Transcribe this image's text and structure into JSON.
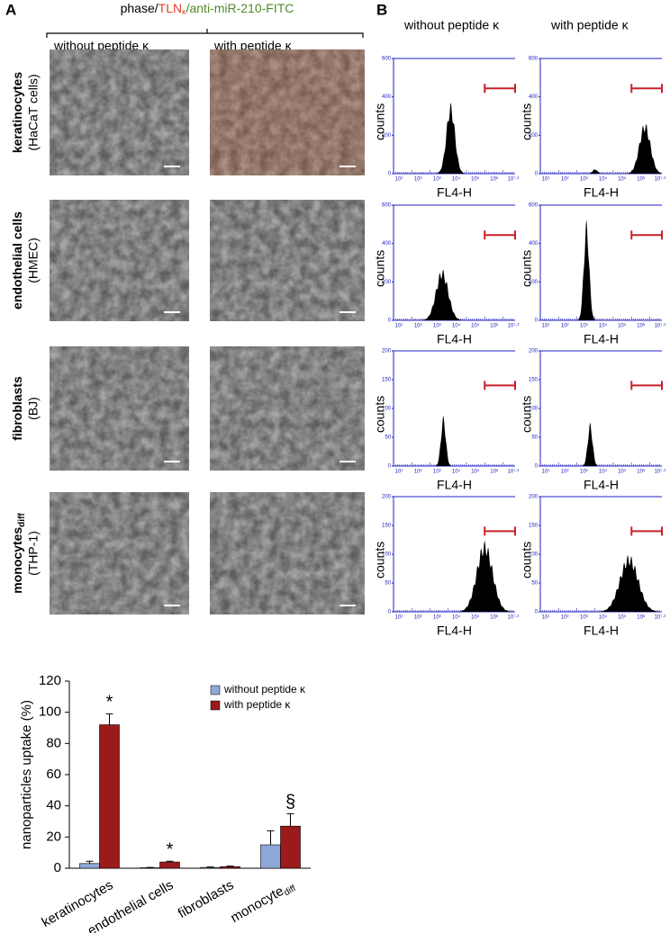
{
  "panel_a": {
    "label": "A",
    "header": [
      "phase/",
      "TLN",
      "κ",
      "/anti-miR-210-FITC"
    ],
    "columns": [
      "without peptide κ",
      "with peptide κ"
    ],
    "rows": [
      {
        "name": "keratinocytes",
        "sub": "(HaCaT cells)"
      },
      {
        "name": "endothelial cells",
        "sub": "(HMEC)"
      },
      {
        "name": "fibroblasts",
        "sub": "(BJ)"
      },
      {
        "name": "monocytes",
        "name_subscript": "diff",
        "sub": "(THP-1)"
      }
    ]
  },
  "panel_b": {
    "label": "B",
    "columns": [
      "without peptide κ",
      "with peptide κ"
    ],
    "x_label": "FL4-H",
    "y_label": "counts",
    "xticks": [
      "10¹",
      "10²",
      "10³",
      "10⁴",
      "10⁵",
      "10⁶",
      "10⁷·²"
    ],
    "rows": [
      {
        "ylim": [
          0,
          600
        ],
        "yticks": [
          0,
          200,
          400,
          600
        ]
      },
      {
        "ylim": [
          0,
          600
        ],
        "yticks": [
          0,
          200,
          400,
          600
        ]
      },
      {
        "ylim": [
          0,
          200
        ],
        "yticks": [
          0,
          50,
          100,
          150,
          200
        ]
      },
      {
        "ylim": [
          0,
          200
        ],
        "yticks": [
          0,
          50,
          100,
          150,
          200
        ]
      }
    ]
  },
  "chart_data": {
    "type": "bar",
    "y_label": "nanoparticles uptake (%)",
    "categories": [
      "keratinocytes",
      "endothelial cells",
      "fibroblasts",
      "monocyte"
    ],
    "category_subscript": "diff",
    "series": [
      {
        "name": "without peptide κ",
        "color": "#8fa8d8",
        "values": [
          3,
          0.3,
          0.5,
          15
        ],
        "errors": [
          1.5,
          0.2,
          0.3,
          9
        ]
      },
      {
        "name": "with peptide κ",
        "color": "#9b1a1c",
        "values": [
          92,
          4,
          1,
          27
        ],
        "errors": [
          7,
          0.5,
          0.4,
          8
        ]
      }
    ],
    "annotations": [
      {
        "text": "*",
        "category": 0,
        "series": 1
      },
      {
        "text": "*",
        "category": 1,
        "series": 1
      },
      {
        "text": "§",
        "category": 3,
        "series": 1
      }
    ],
    "ylim": [
      0,
      120
    ],
    "yticks": [
      0,
      20,
      40,
      60,
      80,
      100,
      120
    ]
  }
}
